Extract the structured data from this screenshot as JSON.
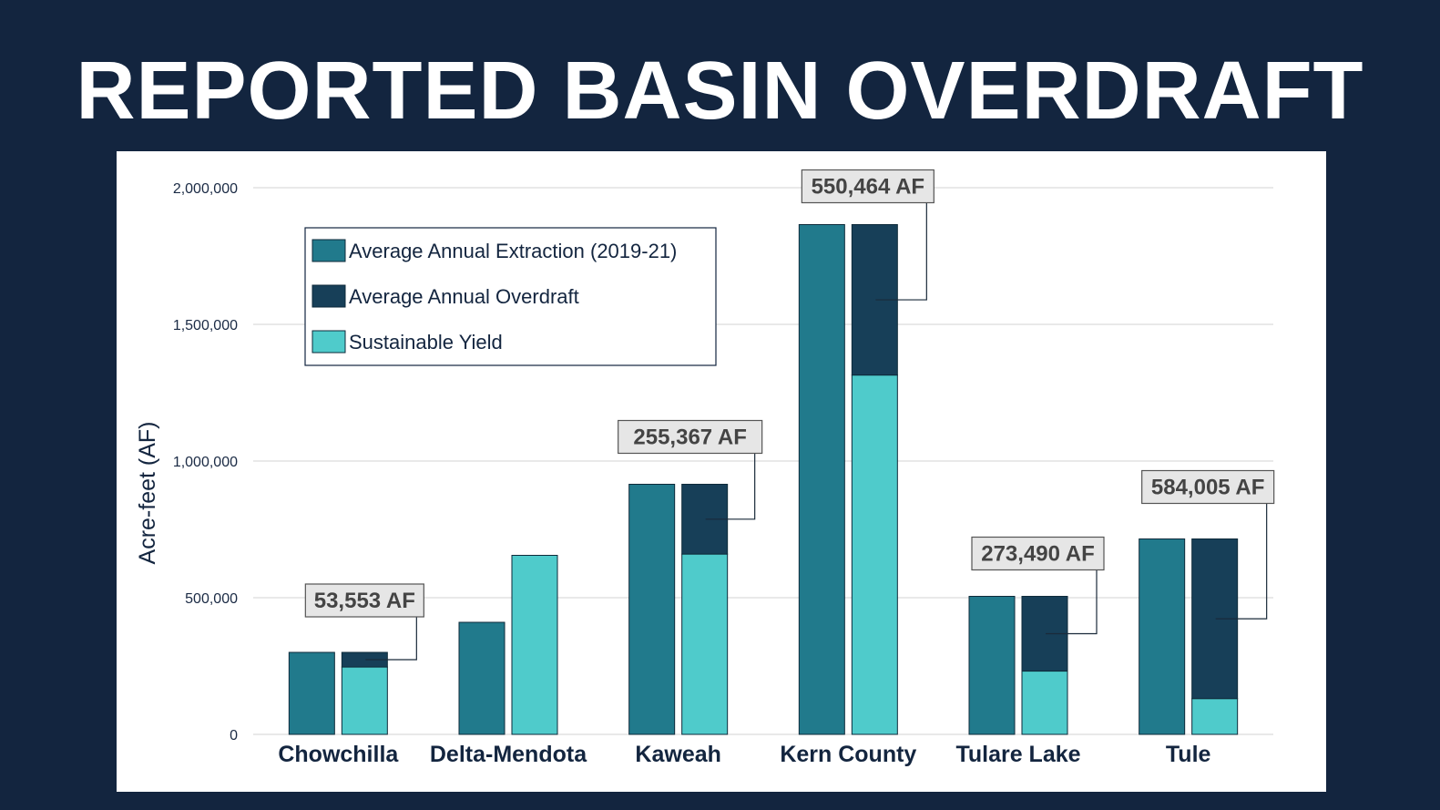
{
  "title": "REPORTED BASIN OVERDRAFT",
  "colors": {
    "background": "#13253f",
    "extraction": "#217a8c",
    "overdraft": "#173f58",
    "sustainable_yield": "#4fcbcb",
    "bar_stroke": "#0e2a3a",
    "grid": "#d3d3d3",
    "annotation_fill": "#e6e6e6"
  },
  "chart_data": {
    "type": "bar",
    "stacked_second_bar": true,
    "title": "",
    "xlabel": "",
    "ylabel": "Acre-feet (AF)",
    "ylim": [
      0,
      2000000
    ],
    "yticks": [
      0,
      500000,
      1000000,
      1500000,
      2000000
    ],
    "ytick_labels": [
      "0",
      "500,000",
      "1,000,000",
      "1,500,000",
      "2,000,000"
    ],
    "grid": true,
    "legend_position": "top-left",
    "categories": [
      "Chowchilla",
      "Delta-Mendota",
      "Kaweah",
      "Kern County",
      "Tulare Lake",
      "Tule"
    ],
    "series": [
      {
        "name": "Average Annual Extraction (2019-21)",
        "values": [
          300000,
          410000,
          915000,
          1865000,
          505000,
          715000
        ]
      },
      {
        "name": "Average Annual Overdraft",
        "values": [
          53553,
          0,
          255367,
          550464,
          273490,
          584005
        ]
      },
      {
        "name": "Sustainable Yield",
        "values": [
          246447,
          655000,
          659633,
          1314536,
          231510,
          130995
        ]
      }
    ],
    "annotations": [
      {
        "category": "Chowchilla",
        "text": "53,553 AF"
      },
      {
        "category": "Kaweah",
        "text": "255,367 AF"
      },
      {
        "category": "Kern County",
        "text": "550,464 AF"
      },
      {
        "category": "Tulare Lake",
        "text": "273,490 AF"
      },
      {
        "category": "Tule",
        "text": "584,005 AF"
      }
    ]
  }
}
